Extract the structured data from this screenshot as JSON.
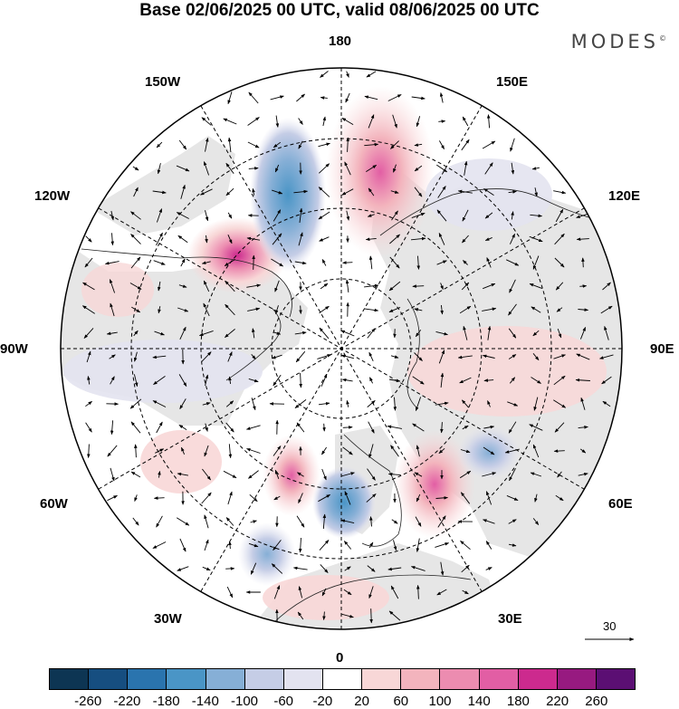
{
  "title": "Base 02/06/2025 00 UTC, valid 08/06/2025 00 UTC",
  "logo": "MODES",
  "logo_mark": "©",
  "longitude_labels": {
    "top": "180",
    "bottom": "0",
    "left": "90W",
    "right": "90E",
    "upper_left_1": "150W",
    "upper_left_2": "120W",
    "upper_right_1": "150E",
    "upper_right_2": "120E",
    "lower_left_1": "60W",
    "lower_left_2": "30W",
    "lower_right_1": "60E",
    "lower_right_2": "30E"
  },
  "reference_vector": "30",
  "colorbar": {
    "colors": [
      "#0d3553",
      "#164e80",
      "#2a74ae",
      "#4a95c6",
      "#86afd6",
      "#c5cde6",
      "#e3e3f0",
      "#ffffff",
      "#f8d7d7",
      "#f3b4bd",
      "#ec8cb0",
      "#e25ea4",
      "#cc2a8e",
      "#971a80",
      "#5b0f73"
    ],
    "ticks": [
      "-260",
      "-220",
      "-180",
      "-140",
      "-100",
      "-60",
      "-20",
      "20",
      "60",
      "100",
      "140",
      "180",
      "220",
      "260"
    ]
  },
  "colors": {
    "land": "#e6e6e6",
    "ocean": "#ffffff",
    "grid": "#000000"
  }
}
